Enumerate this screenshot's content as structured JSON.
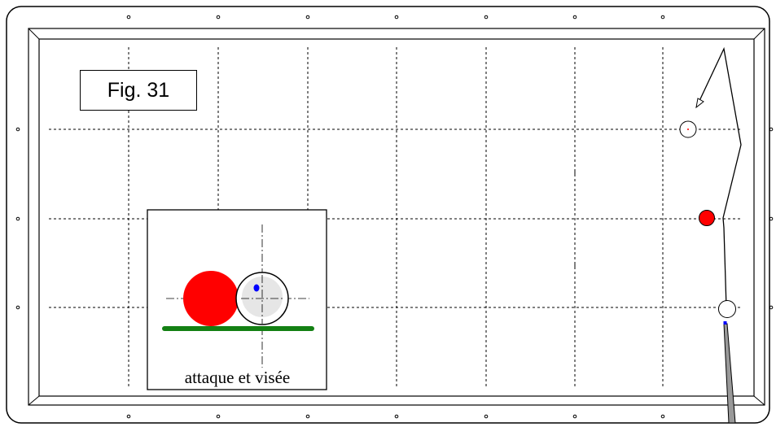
{
  "figure": {
    "label": "Fig. 31",
    "inset_caption": "attaque et visée"
  },
  "colors": {
    "line": "#000000",
    "red_ball": "#ff0000",
    "blue_point": "#0000ff",
    "cloth_line": "#138013",
    "cue": "#999999",
    "ghost_ball_fill": "#e6e6e6"
  }
}
